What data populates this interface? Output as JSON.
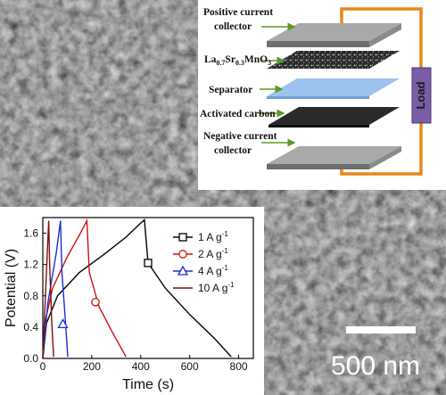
{
  "schematic": {
    "positive_collector_line1": "Positive current",
    "positive_collector_line2": "collector",
    "cathode_base": "La",
    "cathode_sub1": "0.7",
    "cathode_mid": "Sr",
    "cathode_sub2": "0.3",
    "cathode_tail": "MnO",
    "cathode_sub3": "3",
    "separator": "Separator",
    "anode": "Activated carbon",
    "negative_collector_line1": "Negative current",
    "negative_collector_line2": "collector",
    "load": "Load"
  },
  "micrograph": {
    "scale_bar_label": "500 nm"
  },
  "colors": {
    "wire": "#e8861a",
    "load_box": "#7b5ca6",
    "arrow": "#5a9a2a",
    "separator": "#9cc3ee",
    "collector": "#9a9a9a",
    "carbon": "#2a2a2a"
  },
  "chart_data": {
    "type": "line",
    "xlabel": "Time (s)",
    "ylabel": "Potential (V)",
    "xlim": [
      0,
      860
    ],
    "ylim": [
      0,
      1.8
    ],
    "xticks": [
      0,
      200,
      400,
      600,
      800
    ],
    "yticks": [
      0.0,
      0.4,
      0.8,
      1.2,
      1.6
    ],
    "legend_position": "top-right",
    "series": [
      {
        "name": "1 A g",
        "superscript": "-1",
        "color": "#000000",
        "marker": "square",
        "marker_point": [
          430,
          1.22
        ],
        "points": [
          [
            0,
            0
          ],
          [
            15,
            0.45
          ],
          [
            60,
            0.8
          ],
          [
            150,
            1.1
          ],
          [
            250,
            1.33
          ],
          [
            340,
            1.55
          ],
          [
            400,
            1.73
          ],
          [
            415,
            1.77
          ],
          [
            430,
            1.22
          ],
          [
            500,
            0.9
          ],
          [
            600,
            0.56
          ],
          [
            700,
            0.26
          ],
          [
            770,
            0.02
          ]
        ]
      },
      {
        "name": "2 A g",
        "superscript": "-1",
        "color": "#cc1010",
        "marker": "circle",
        "marker_point": [
          215,
          0.72
        ],
        "points": [
          [
            0,
            0
          ],
          [
            8,
            0.45
          ],
          [
            40,
            0.9
          ],
          [
            100,
            1.3
          ],
          [
            150,
            1.58
          ],
          [
            180,
            1.76
          ],
          [
            190,
            1.1
          ],
          [
            230,
            0.66
          ],
          [
            290,
            0.3
          ],
          [
            340,
            0.02
          ]
        ]
      },
      {
        "name": "4 A g",
        "superscript": "-1",
        "color": "#1a2fd0",
        "marker": "triangle",
        "marker_point": [
          82,
          0.44
        ],
        "points": [
          [
            0,
            0
          ],
          [
            20,
            0.7
          ],
          [
            55,
            1.35
          ],
          [
            72,
            1.76
          ],
          [
            78,
            1.1
          ],
          [
            90,
            0.58
          ],
          [
            102,
            0.02
          ]
        ]
      },
      {
        "name": "10 A g",
        "superscript": "-1",
        "color": "#7a1010",
        "marker": "none",
        "points": [
          [
            0,
            0
          ],
          [
            12,
            0.9
          ],
          [
            24,
            1.76
          ],
          [
            28,
            1.2
          ],
          [
            36,
            0.5
          ],
          [
            44,
            0.02
          ]
        ]
      }
    ]
  }
}
